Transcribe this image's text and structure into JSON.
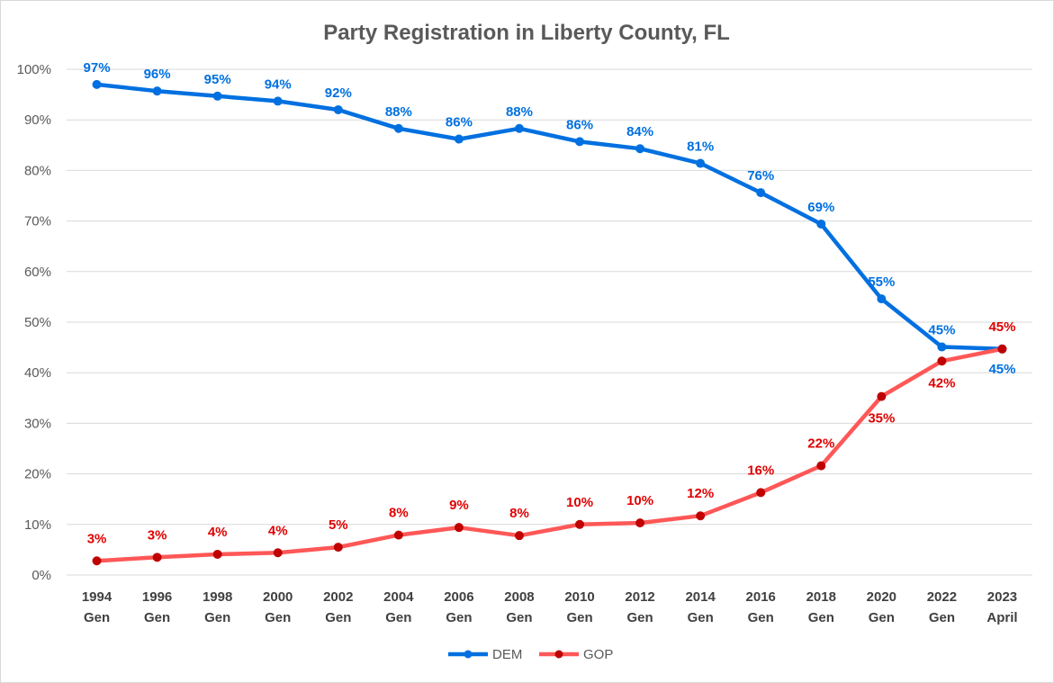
{
  "chart_data": {
    "type": "line",
    "title": "Party Registration in Liberty County, FL",
    "categories": [
      [
        "1994",
        "Gen"
      ],
      [
        "1996",
        "Gen"
      ],
      [
        "1998",
        "Gen"
      ],
      [
        "2000",
        "Gen"
      ],
      [
        "2002",
        "Gen"
      ],
      [
        "2004",
        "Gen"
      ],
      [
        "2006",
        "Gen"
      ],
      [
        "2008",
        "Gen"
      ],
      [
        "2010",
        "Gen"
      ],
      [
        "2012",
        "Gen"
      ],
      [
        "2014",
        "Gen"
      ],
      [
        "2016",
        "Gen"
      ],
      [
        "2018",
        "Gen"
      ],
      [
        "2020",
        "Gen"
      ],
      [
        "2022",
        "Gen"
      ],
      [
        "2023",
        "April"
      ]
    ],
    "ylim": [
      0,
      100
    ],
    "yticks": [
      "0%",
      "10%",
      "20%",
      "30%",
      "40%",
      "50%",
      "60%",
      "70%",
      "80%",
      "90%",
      "100%"
    ],
    "grid": true,
    "legend_position": "bottom",
    "series": [
      {
        "name": "DEM",
        "color": "#0070e0",
        "values": [
          97.0,
          95.7,
          94.7,
          93.7,
          92.0,
          88.3,
          86.2,
          88.3,
          85.7,
          84.3,
          81.4,
          75.6,
          69.4,
          54.6,
          45.1,
          44.7
        ],
        "labels": [
          "97%",
          "96%",
          "95%",
          "94%",
          "92%",
          "88%",
          "86%",
          "88%",
          "86%",
          "84%",
          "81%",
          "76%",
          "69%",
          "55%",
          "45%",
          "45%"
        ]
      },
      {
        "name": "GOP",
        "color": "#ff5757",
        "marker_color": "#c00000",
        "label_color": "#e00000",
        "values": [
          2.8,
          3.5,
          4.1,
          4.4,
          5.5,
          7.9,
          9.4,
          7.8,
          10.0,
          10.3,
          11.7,
          16.3,
          21.6,
          35.3,
          42.3,
          44.7
        ],
        "labels": [
          "3%",
          "3%",
          "4%",
          "4%",
          "5%",
          "8%",
          "9%",
          "8%",
          "10%",
          "10%",
          "12%",
          "16%",
          "22%",
          "35%",
          "42%",
          "45%"
        ]
      }
    ]
  }
}
